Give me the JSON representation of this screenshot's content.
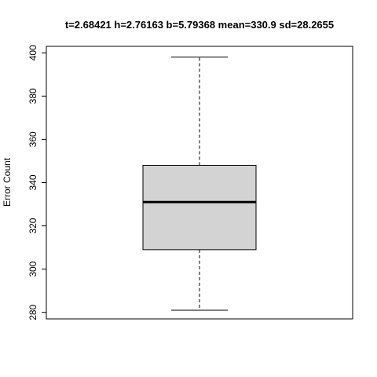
{
  "chart_data": {
    "type": "boxplot",
    "title": "t=2.68421 h=2.76163 b=5.79368 mean=330.9 sd=28.2655",
    "xlabel": "",
    "ylabel": "Error Count",
    "ylim": [
      277,
      403
    ],
    "yticks": [
      280,
      300,
      320,
      340,
      360,
      380,
      400
    ],
    "grid": false,
    "box": {
      "whisker_low": 281,
      "q1": 309,
      "median": 331,
      "q3": 348,
      "whisker_high": 398
    },
    "box_fill": "#d3d3d3"
  }
}
